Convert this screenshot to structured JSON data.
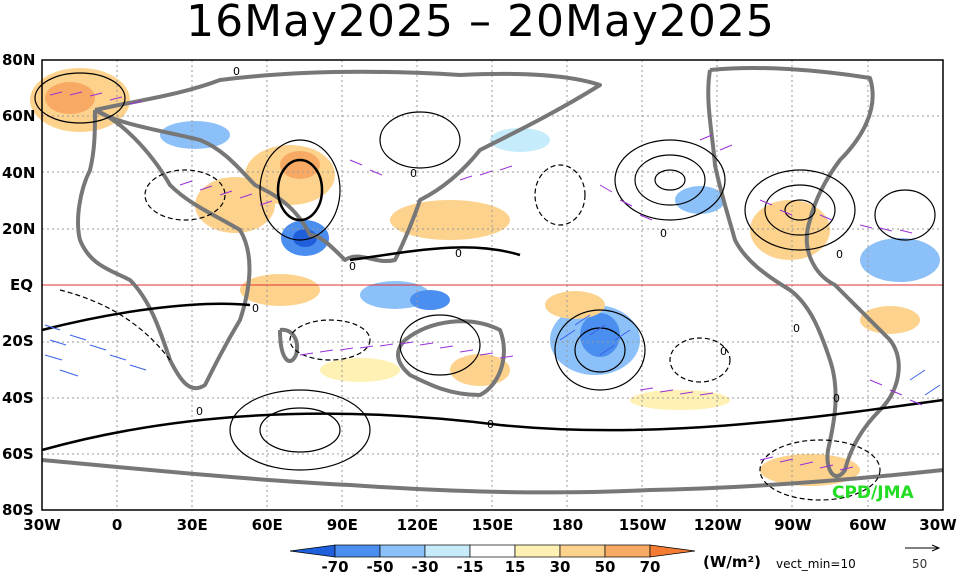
{
  "title": "16May2025 – 20May2025",
  "credit": "CPD/JMA",
  "lat_labels": [
    "80N",
    "60N",
    "40N",
    "20N",
    "EQ",
    "20S",
    "40S",
    "60S",
    "80S"
  ],
  "lon_labels": [
    "30W",
    "0",
    "30E",
    "60E",
    "90E",
    "120E",
    "150E",
    "180",
    "150W",
    "120W",
    "90W",
    "60W",
    "30W"
  ],
  "legend": {
    "ticks": [
      "-70",
      "-50",
      "-30",
      "-15",
      "15",
      "30",
      "50",
      "70"
    ],
    "units": "(W/m²)",
    "vect_min": "vect_min=10",
    "ref_vector": "50",
    "colors": [
      "#1f5fdc",
      "#4a8ef0",
      "#8cc0f8",
      "#c6ecfb",
      "#ffffff",
      "#fff0b4",
      "#fcd28c",
      "#f8aa64",
      "#f47b32"
    ]
  },
  "colors": {
    "land_outline": "#777777",
    "contour": "#000000",
    "vector": "#9b30d8",
    "vector_strong": "#3a62e8",
    "equator": "#e03030"
  }
}
